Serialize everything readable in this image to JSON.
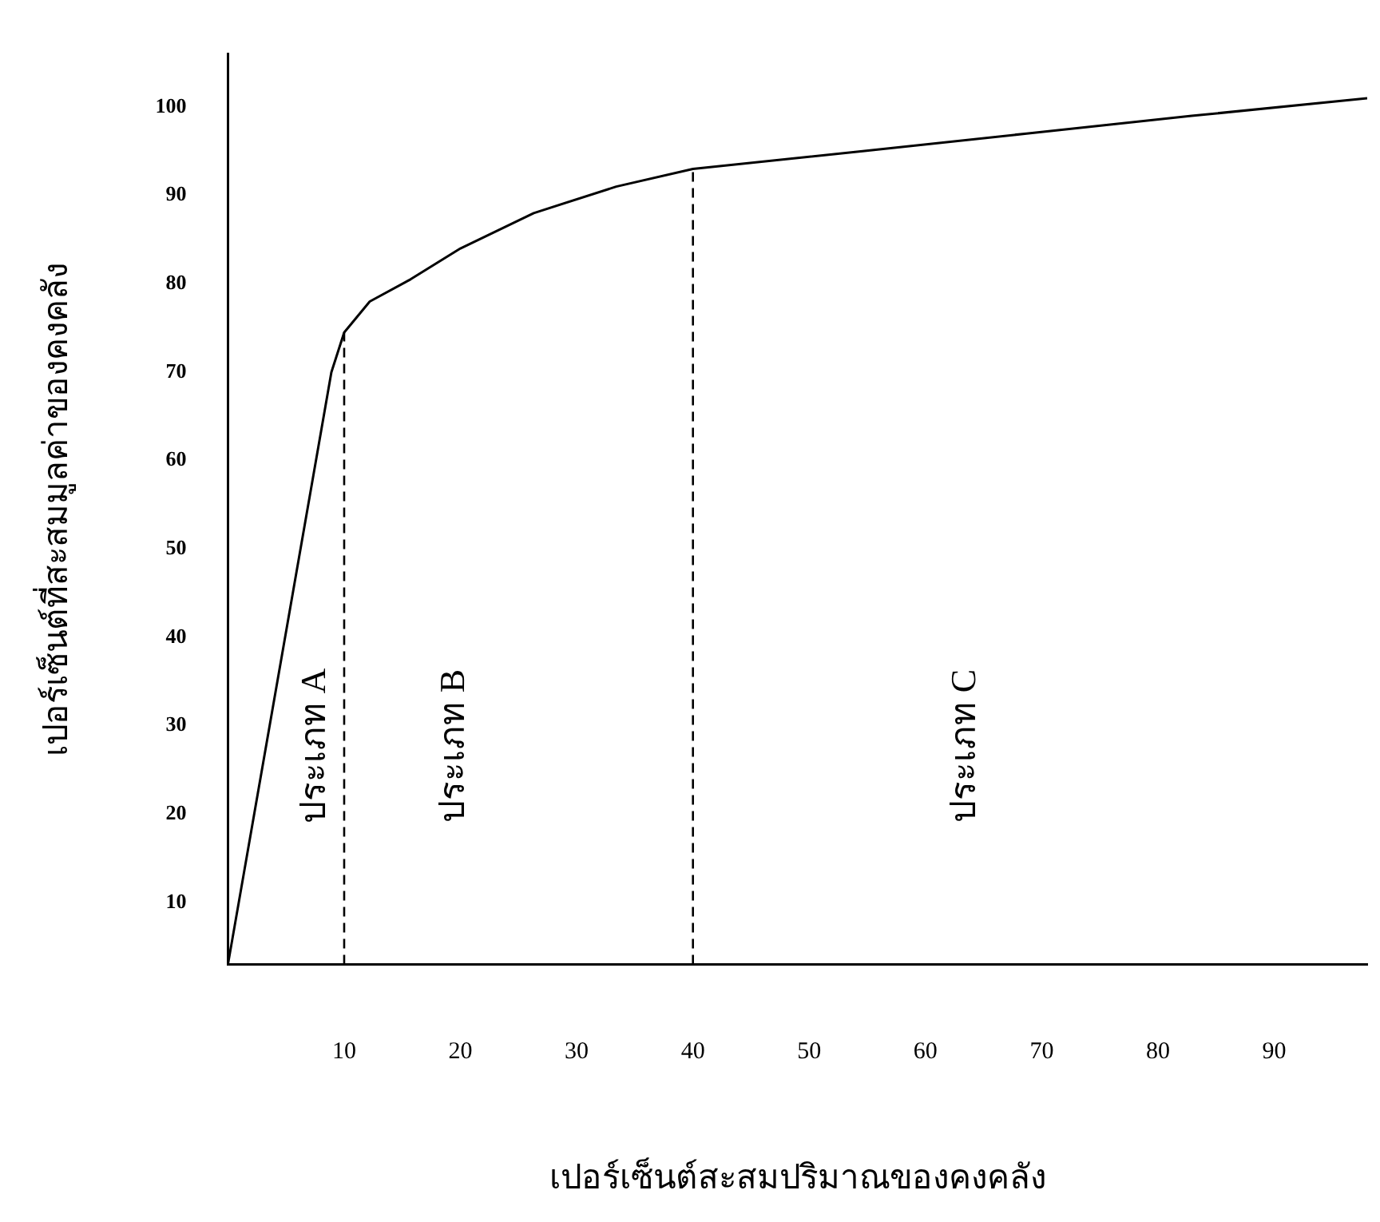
{
  "chart_data": {
    "type": "line",
    "xlabel": "เปอร์เซ็นต์สะสมปริมาณของคงคลัง",
    "ylabel": "เปอร์เซ็นต์ที่สะสมมูลค่าของคงคลัง",
    "x": [
      0,
      8.9,
      10,
      12.2,
      15.7,
      20,
      26.3,
      33.4,
      40,
      54.6,
      68.7,
      82.9,
      98
    ],
    "series": [
      {
        "color": "#000000",
        "values": [
          3,
          70,
          74.5,
          78,
          80.5,
          84,
          88,
          91,
          93,
          95,
          97,
          99,
          101
        ]
      }
    ],
    "xlim": [
      0,
      98
    ],
    "ylim": [
      3,
      106
    ],
    "xticks": [
      10,
      20,
      30,
      40,
      50,
      60,
      70,
      80,
      90
    ],
    "yticks": [
      10,
      20,
      30,
      40,
      50,
      60,
      70,
      80,
      90,
      100
    ],
    "ref_lines": [
      {
        "axis": "x",
        "value": 10,
        "line_style": "dashed"
      },
      {
        "axis": "x",
        "value": 40,
        "line_style": "dashed"
      }
    ],
    "annotations": [
      "ประเภท A",
      "ประเภท B",
      "ประเภท C"
    ],
    "grid": false,
    "legend": false,
    "marker": "none",
    "line_style": "solid"
  }
}
